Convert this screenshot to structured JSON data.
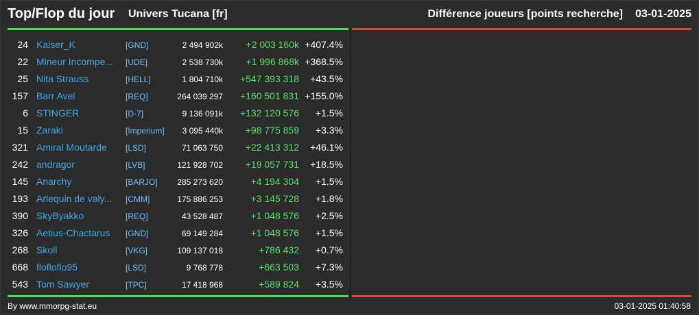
{
  "header": {
    "title": "Top/Flop du jour",
    "universe": "Univers Tucana [fr]",
    "metric": "Différence joueurs [points recherche]",
    "date": "03-01-2025"
  },
  "colors": {
    "top_line": "#4ddb55",
    "flop_line": "#d9473f",
    "player_name": "#3fa9e8",
    "alliance": "#6cc3ff",
    "positive_delta": "#56e36a"
  },
  "rows": [
    {
      "rank": "24",
      "player": "Kaiser_K",
      "alliance": "[GND]",
      "points": "2 494 902k",
      "delta": "+2 003 160k",
      "percent": "+407.4%"
    },
    {
      "rank": "22",
      "player": "Mineur Incompe...",
      "alliance": "[UDE]",
      "points": "2 538 730k",
      "delta": "+1 996 868k",
      "percent": "+368.5%"
    },
    {
      "rank": "25",
      "player": "Nita Strauss",
      "alliance": "[HELL]",
      "points": "1 804 710k",
      "delta": "+547 393 318",
      "percent": "+43.5%"
    },
    {
      "rank": "157",
      "player": "Barr Avel",
      "alliance": "[REQ]",
      "points": "264 039 297",
      "delta": "+160 501 831",
      "percent": "+155.0%"
    },
    {
      "rank": "6",
      "player": "STINGER",
      "alliance": "[D-7]",
      "points": "9 136 091k",
      "delta": "+132 120 576",
      "percent": "+1.5%"
    },
    {
      "rank": "15",
      "player": "Zaraki",
      "alliance": "[Imperium]",
      "points": "3 095 440k",
      "delta": "+98 775 859",
      "percent": "+3.3%"
    },
    {
      "rank": "321",
      "player": "Amiral Moutarde",
      "alliance": "[LSD]",
      "points": "71 063 750",
      "delta": "+22 413 312",
      "percent": "+46.1%"
    },
    {
      "rank": "242",
      "player": "andragor",
      "alliance": "[LVB]",
      "points": "121 928 702",
      "delta": "+19 057 731",
      "percent": "+18.5%"
    },
    {
      "rank": "145",
      "player": "Anarchy",
      "alliance": "[BARJO]",
      "points": "285 273 620",
      "delta": "+4 194 304",
      "percent": "+1.5%"
    },
    {
      "rank": "193",
      "player": "Arlequin de valy...",
      "alliance": "[CMM]",
      "points": "175 886 253",
      "delta": "+3 145 728",
      "percent": "+1.8%"
    },
    {
      "rank": "390",
      "player": "SkyByakko",
      "alliance": "[REQ]",
      "points": "43 528 487",
      "delta": "+1 048 576",
      "percent": "+2.5%"
    },
    {
      "rank": "326",
      "player": "Aetius-Chactarus",
      "alliance": "[GND]",
      "points": "69 149 284",
      "delta": "+1 048 576",
      "percent": "+1.5%"
    },
    {
      "rank": "268",
      "player": "Skoll",
      "alliance": "[VKG]",
      "points": "109 137 018",
      "delta": "+786 432",
      "percent": "+0.7%"
    },
    {
      "rank": "668",
      "player": "flofloflo95",
      "alliance": "[LSD]",
      "points": "9 768 778",
      "delta": "+663 503",
      "percent": "+7.3%"
    },
    {
      "rank": "543",
      "player": "Tom Sawyer",
      "alliance": "[TPC]",
      "points": "17 418 968",
      "delta": "+589 824",
      "percent": "+3.5%"
    }
  ],
  "footer": {
    "credit": "By www.mmorpg-stat.eu",
    "timestamp": "03-01-2025 01:40:58"
  }
}
